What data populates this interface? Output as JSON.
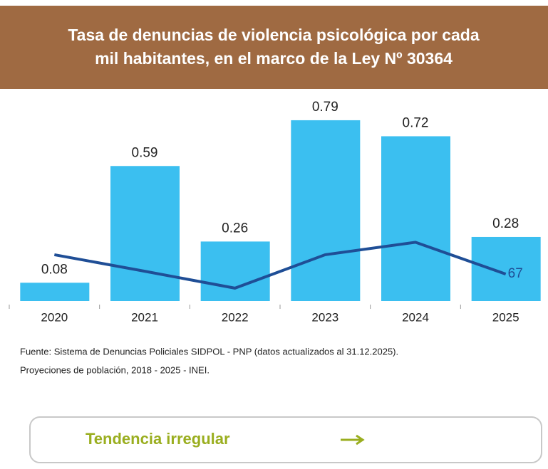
{
  "header": {
    "title": [
      "Tasa de denuncias de violencia psicológica por cada",
      "mil habitantes, en el marco de la Ley Nº 30364"
    ]
  },
  "chart_data": {
    "type": "bar",
    "categories": [
      "2020",
      "2021",
      "2022",
      "2023",
      "2024",
      "2025"
    ],
    "series": [
      {
        "color": "#3bbff0",
        "values": [
          0.08,
          0.59,
          0.26,
          0.79,
          0.72,
          0.28
        ]
      },
      {
        "type": "line",
        "axis": "y2",
        "color": "#1f4e96",
        "values": [
          115,
          74,
          32,
          115,
          146,
          67
        ],
        "label_last": true
      }
    ],
    "ylim": [
      0,
      0.88
    ],
    "y2lim": [
      0,
      500
    ]
  },
  "source": [
    "Fuente: Sistema de Denuncias Policiales SIDPOL - PNP (datos actualizados al 31.12.2025).",
    "Proyeciones de población,  2018 - 2025 - INEI."
  ],
  "button": {
    "label": "Tendencia irregular"
  }
}
